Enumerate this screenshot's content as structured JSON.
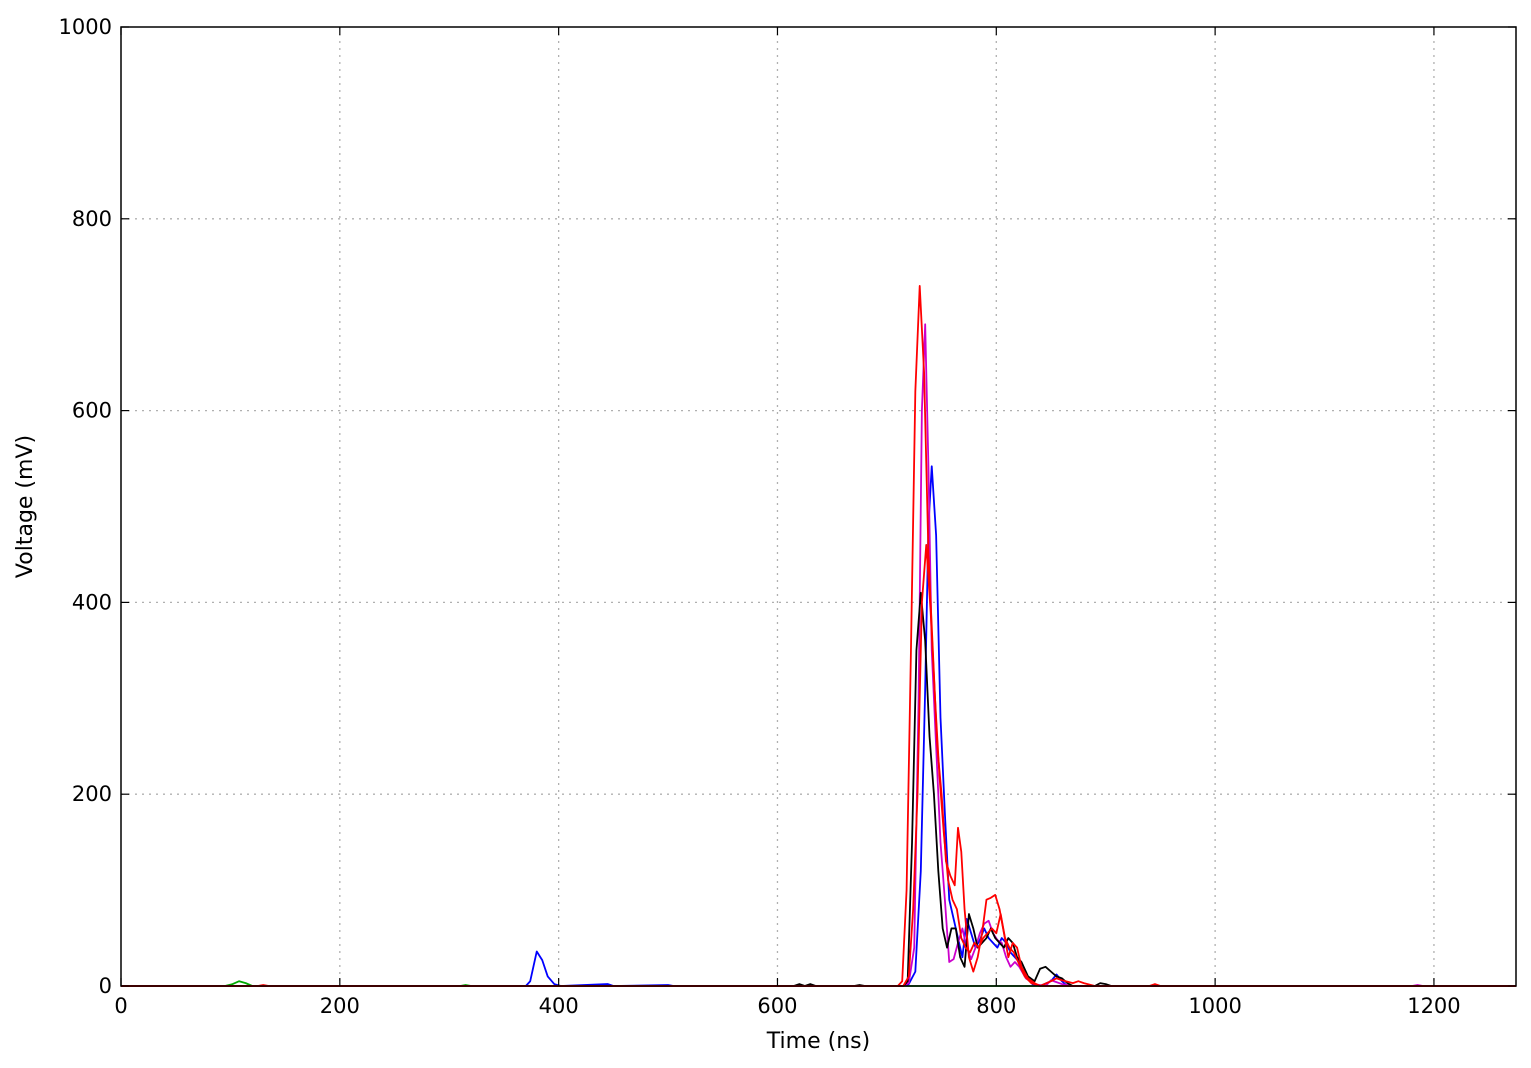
{
  "chart_data": {
    "type": "line",
    "title": "",
    "xlabel": "Time (ns)",
    "ylabel": "Voltage (mV)",
    "xlim": [
      0,
      1275
    ],
    "ylim": [
      0,
      1000
    ],
    "xticks": [
      0,
      200,
      400,
      600,
      800,
      1000,
      1200
    ],
    "yticks": [
      0,
      200,
      400,
      600,
      800,
      1000
    ],
    "grid": true,
    "legend": "none",
    "series": [
      {
        "color": "#00aa00",
        "points": [
          [
            0,
            0
          ],
          [
            95,
            0
          ],
          [
            102,
            2
          ],
          [
            108,
            5
          ],
          [
            114,
            3
          ],
          [
            120,
            0
          ],
          [
            310,
            0
          ],
          [
            315,
            1
          ],
          [
            320,
            0
          ],
          [
            1275,
            0
          ]
        ]
      },
      {
        "color": "#0000ff",
        "points": [
          [
            0,
            0
          ],
          [
            370,
            0
          ],
          [
            374,
            5
          ],
          [
            380,
            36
          ],
          [
            385,
            27
          ],
          [
            390,
            10
          ],
          [
            396,
            2
          ],
          [
            402,
            0
          ],
          [
            445,
            2
          ],
          [
            450,
            0
          ],
          [
            500,
            1
          ],
          [
            505,
            0
          ],
          [
            715,
            0
          ],
          [
            720,
            2
          ],
          [
            726,
            15
          ],
          [
            731,
            120
          ],
          [
            735,
            310
          ],
          [
            738,
            480
          ],
          [
            741,
            542
          ],
          [
            745,
            470
          ],
          [
            749,
            280
          ],
          [
            753,
            180
          ],
          [
            757,
            90
          ],
          [
            761,
            70
          ],
          [
            765,
            50
          ],
          [
            769,
            30
          ],
          [
            773,
            70
          ],
          [
            777,
            55
          ],
          [
            781,
            40
          ],
          [
            785,
            48
          ],
          [
            789,
            60
          ],
          [
            793,
            50
          ],
          [
            797,
            45
          ],
          [
            801,
            40
          ],
          [
            805,
            50
          ],
          [
            809,
            45
          ],
          [
            813,
            35
          ],
          [
            817,
            30
          ],
          [
            821,
            25
          ],
          [
            827,
            10
          ],
          [
            833,
            2
          ],
          [
            840,
            0
          ],
          [
            850,
            5
          ],
          [
            855,
            12
          ],
          [
            860,
            5
          ],
          [
            865,
            0
          ],
          [
            1275,
            0
          ]
        ]
      },
      {
        "color": "#cc00cc",
        "points": [
          [
            0,
            0
          ],
          [
            715,
            0
          ],
          [
            720,
            3
          ],
          [
            725,
            40
          ],
          [
            729,
            300
          ],
          [
            732,
            600
          ],
          [
            735,
            690
          ],
          [
            738,
            540
          ],
          [
            741,
            350
          ],
          [
            745,
            250
          ],
          [
            749,
            150
          ],
          [
            753,
            90
          ],
          [
            757,
            25
          ],
          [
            761,
            28
          ],
          [
            765,
            45
          ],
          [
            769,
            60
          ],
          [
            773,
            40
          ],
          [
            777,
            28
          ],
          [
            781,
            40
          ],
          [
            785,
            55
          ],
          [
            789,
            65
          ],
          [
            793,
            68
          ],
          [
            797,
            55
          ],
          [
            801,
            48
          ],
          [
            805,
            45
          ],
          [
            809,
            30
          ],
          [
            813,
            20
          ],
          [
            817,
            25
          ],
          [
            821,
            20
          ],
          [
            827,
            8
          ],
          [
            835,
            2
          ],
          [
            845,
            0
          ],
          [
            850,
            6
          ],
          [
            855,
            4
          ],
          [
            860,
            2
          ],
          [
            870,
            0
          ],
          [
            1180,
            0
          ],
          [
            1185,
            1
          ],
          [
            1190,
            0
          ],
          [
            1275,
            0
          ]
        ]
      },
      {
        "color": "#000000",
        "points": [
          [
            0,
            0
          ],
          [
            615,
            0
          ],
          [
            620,
            2
          ],
          [
            625,
            0
          ],
          [
            630,
            2
          ],
          [
            635,
            0
          ],
          [
            670,
            0
          ],
          [
            675,
            1
          ],
          [
            680,
            0
          ],
          [
            715,
            0
          ],
          [
            719,
            5
          ],
          [
            723,
            150
          ],
          [
            727,
            350
          ],
          [
            731,
            410
          ],
          [
            735,
            360
          ],
          [
            739,
            260
          ],
          [
            743,
            200
          ],
          [
            747,
            120
          ],
          [
            751,
            60
          ],
          [
            755,
            40
          ],
          [
            759,
            60
          ],
          [
            763,
            60
          ],
          [
            767,
            30
          ],
          [
            771,
            20
          ],
          [
            775,
            75
          ],
          [
            779,
            60
          ],
          [
            783,
            40
          ],
          [
            787,
            45
          ],
          [
            791,
            50
          ],
          [
            795,
            60
          ],
          [
            799,
            50
          ],
          [
            803,
            45
          ],
          [
            807,
            40
          ],
          [
            811,
            50
          ],
          [
            815,
            45
          ],
          [
            819,
            30
          ],
          [
            823,
            25
          ],
          [
            829,
            10
          ],
          [
            835,
            5
          ],
          [
            840,
            18
          ],
          [
            845,
            20
          ],
          [
            850,
            15
          ],
          [
            855,
            10
          ],
          [
            860,
            8
          ],
          [
            865,
            3
          ],
          [
            870,
            0
          ],
          [
            890,
            0
          ],
          [
            895,
            3
          ],
          [
            900,
            2
          ],
          [
            905,
            0
          ],
          [
            1275,
            0
          ]
        ]
      },
      {
        "color": "#ff0000",
        "points": [
          [
            0,
            0
          ],
          [
            125,
            0
          ],
          [
            130,
            1
          ],
          [
            135,
            0
          ],
          [
            710,
            0
          ],
          [
            714,
            5
          ],
          [
            718,
            100
          ],
          [
            722,
            350
          ],
          [
            726,
            620
          ],
          [
            730,
            730
          ],
          [
            734,
            640
          ],
          [
            738,
            450
          ],
          [
            742,
            350
          ],
          [
            746,
            250
          ],
          [
            750,
            200
          ],
          [
            754,
            130
          ],
          [
            758,
            115
          ],
          [
            762,
            105
          ],
          [
            765,
            165
          ],
          [
            768,
            140
          ],
          [
            771,
            80
          ],
          [
            775,
            30
          ],
          [
            779,
            15
          ],
          [
            783,
            30
          ],
          [
            787,
            55
          ],
          [
            791,
            90
          ],
          [
            795,
            92
          ],
          [
            799,
            95
          ],
          [
            803,
            80
          ],
          [
            807,
            55
          ],
          [
            811,
            30
          ],
          [
            815,
            45
          ],
          [
            819,
            40
          ],
          [
            823,
            20
          ],
          [
            829,
            8
          ],
          [
            835,
            3
          ],
          [
            840,
            0
          ],
          [
            850,
            5
          ],
          [
            855,
            8
          ],
          [
            860,
            6
          ],
          [
            870,
            3
          ],
          [
            875,
            5
          ],
          [
            880,
            3
          ],
          [
            890,
            0
          ],
          [
            940,
            0
          ],
          [
            945,
            2
          ],
          [
            950,
            0
          ],
          [
            1275,
            0
          ]
        ]
      },
      {
        "color": "#ff0000",
        "points": [
          [
            0,
            0
          ],
          [
            715,
            0
          ],
          [
            720,
            10
          ],
          [
            724,
            80
          ],
          [
            728,
            200
          ],
          [
            732,
            400
          ],
          [
            736,
            460
          ],
          [
            740,
            390
          ],
          [
            744,
            300
          ],
          [
            748,
            220
          ],
          [
            752,
            160
          ],
          [
            756,
            110
          ],
          [
            760,
            90
          ],
          [
            764,
            80
          ],
          [
            768,
            50
          ],
          [
            772,
            40
          ],
          [
            776,
            35
          ],
          [
            780,
            45
          ],
          [
            784,
            40
          ],
          [
            788,
            50
          ],
          [
            792,
            55
          ],
          [
            796,
            60
          ],
          [
            800,
            55
          ],
          [
            804,
            75
          ],
          [
            808,
            50
          ],
          [
            812,
            40
          ],
          [
            816,
            35
          ],
          [
            820,
            25
          ],
          [
            826,
            10
          ],
          [
            832,
            3
          ],
          [
            840,
            0
          ],
          [
            1275,
            0
          ]
        ]
      }
    ]
  }
}
